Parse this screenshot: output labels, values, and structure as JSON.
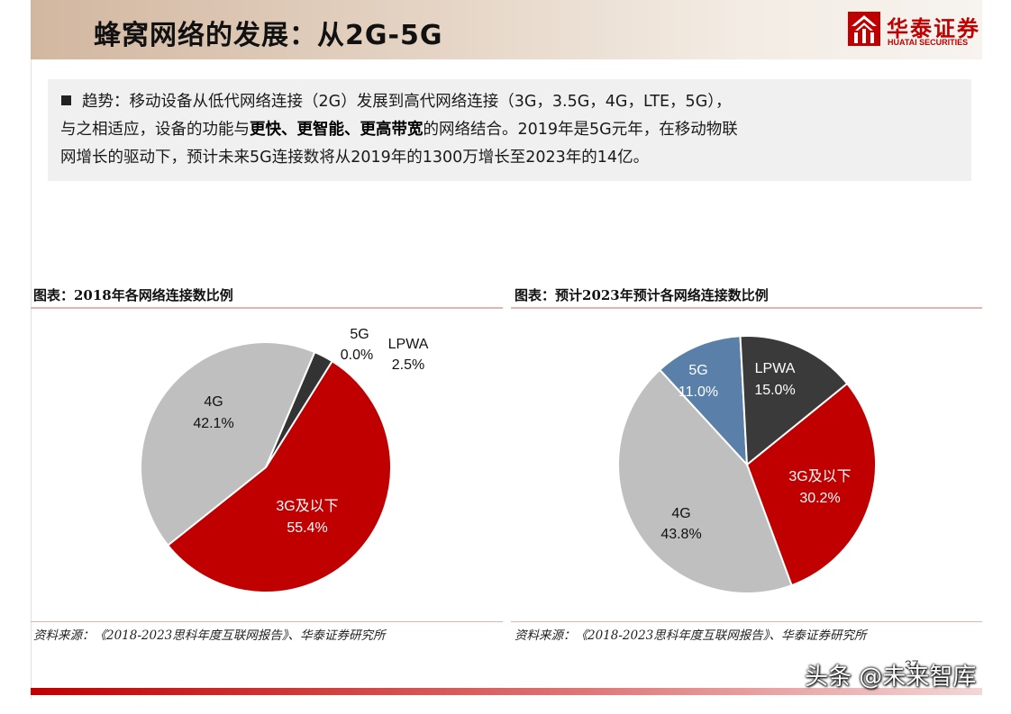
{
  "header": {
    "title": "蜂窝网络的发展：从2G-5G",
    "logo_cn": "华泰证券",
    "logo_en": "HUATAI SECURITIES"
  },
  "summary": {
    "line1": "趋势：移动设备从低代网络连接（2G）发展到高代网络连接（3G，3.5G，4G，LTE，5G），",
    "line2_a": "与之相适应，设备的功能与",
    "line2_bold": "更快、更智能、更高带宽",
    "line2_b": "的网络结合。2019年是5G元年，在移动物联",
    "line3": "网增长的驱动下，预计未来5G连接数将从2019年的1300万增长至2023年的14亿。"
  },
  "charts": {
    "left": {
      "title": "图表：2018年各网络连接数比例",
      "source": "资料来源：《2018-2023思科年度互联网报告》、华泰证券研究所"
    },
    "right": {
      "title": "图表：预计2023年预计各网络连接数比例",
      "source": "资料来源：《2018-2023思科年度互联网报告》、华泰证券研究所"
    }
  },
  "chart_data": [
    {
      "type": "pie",
      "title": "图表：2018年各网络连接数比例",
      "series": [
        {
          "name": "3G及以下",
          "value": 55.4,
          "label": "55.4%",
          "color": "#c00000"
        },
        {
          "name": "4G",
          "value": 42.1,
          "label": "42.1%",
          "color": "#bfbfbf"
        },
        {
          "name": "5G",
          "value": 0.0,
          "label": "0.0%",
          "color": "#1f4e79"
        },
        {
          "name": "LPWA",
          "value": 2.5,
          "label": "2.5%",
          "color": "#333333"
        }
      ]
    },
    {
      "type": "pie",
      "title": "图表：预计2023年预计各网络连接数比例",
      "series": [
        {
          "name": "3G及以下",
          "value": 30.2,
          "label": "30.2%",
          "color": "#c00000"
        },
        {
          "name": "4G",
          "value": 43.8,
          "label": "43.8%",
          "color": "#bfbfbf"
        },
        {
          "name": "5G",
          "value": 11.0,
          "label": "11.0%",
          "color": "#5a7fa8"
        },
        {
          "name": "LPWA",
          "value": 15.0,
          "label": "15.0%",
          "color": "#3a3a3a"
        }
      ]
    }
  ],
  "footer": {
    "page_number": "37",
    "watermark": "头条 @未来智库"
  }
}
